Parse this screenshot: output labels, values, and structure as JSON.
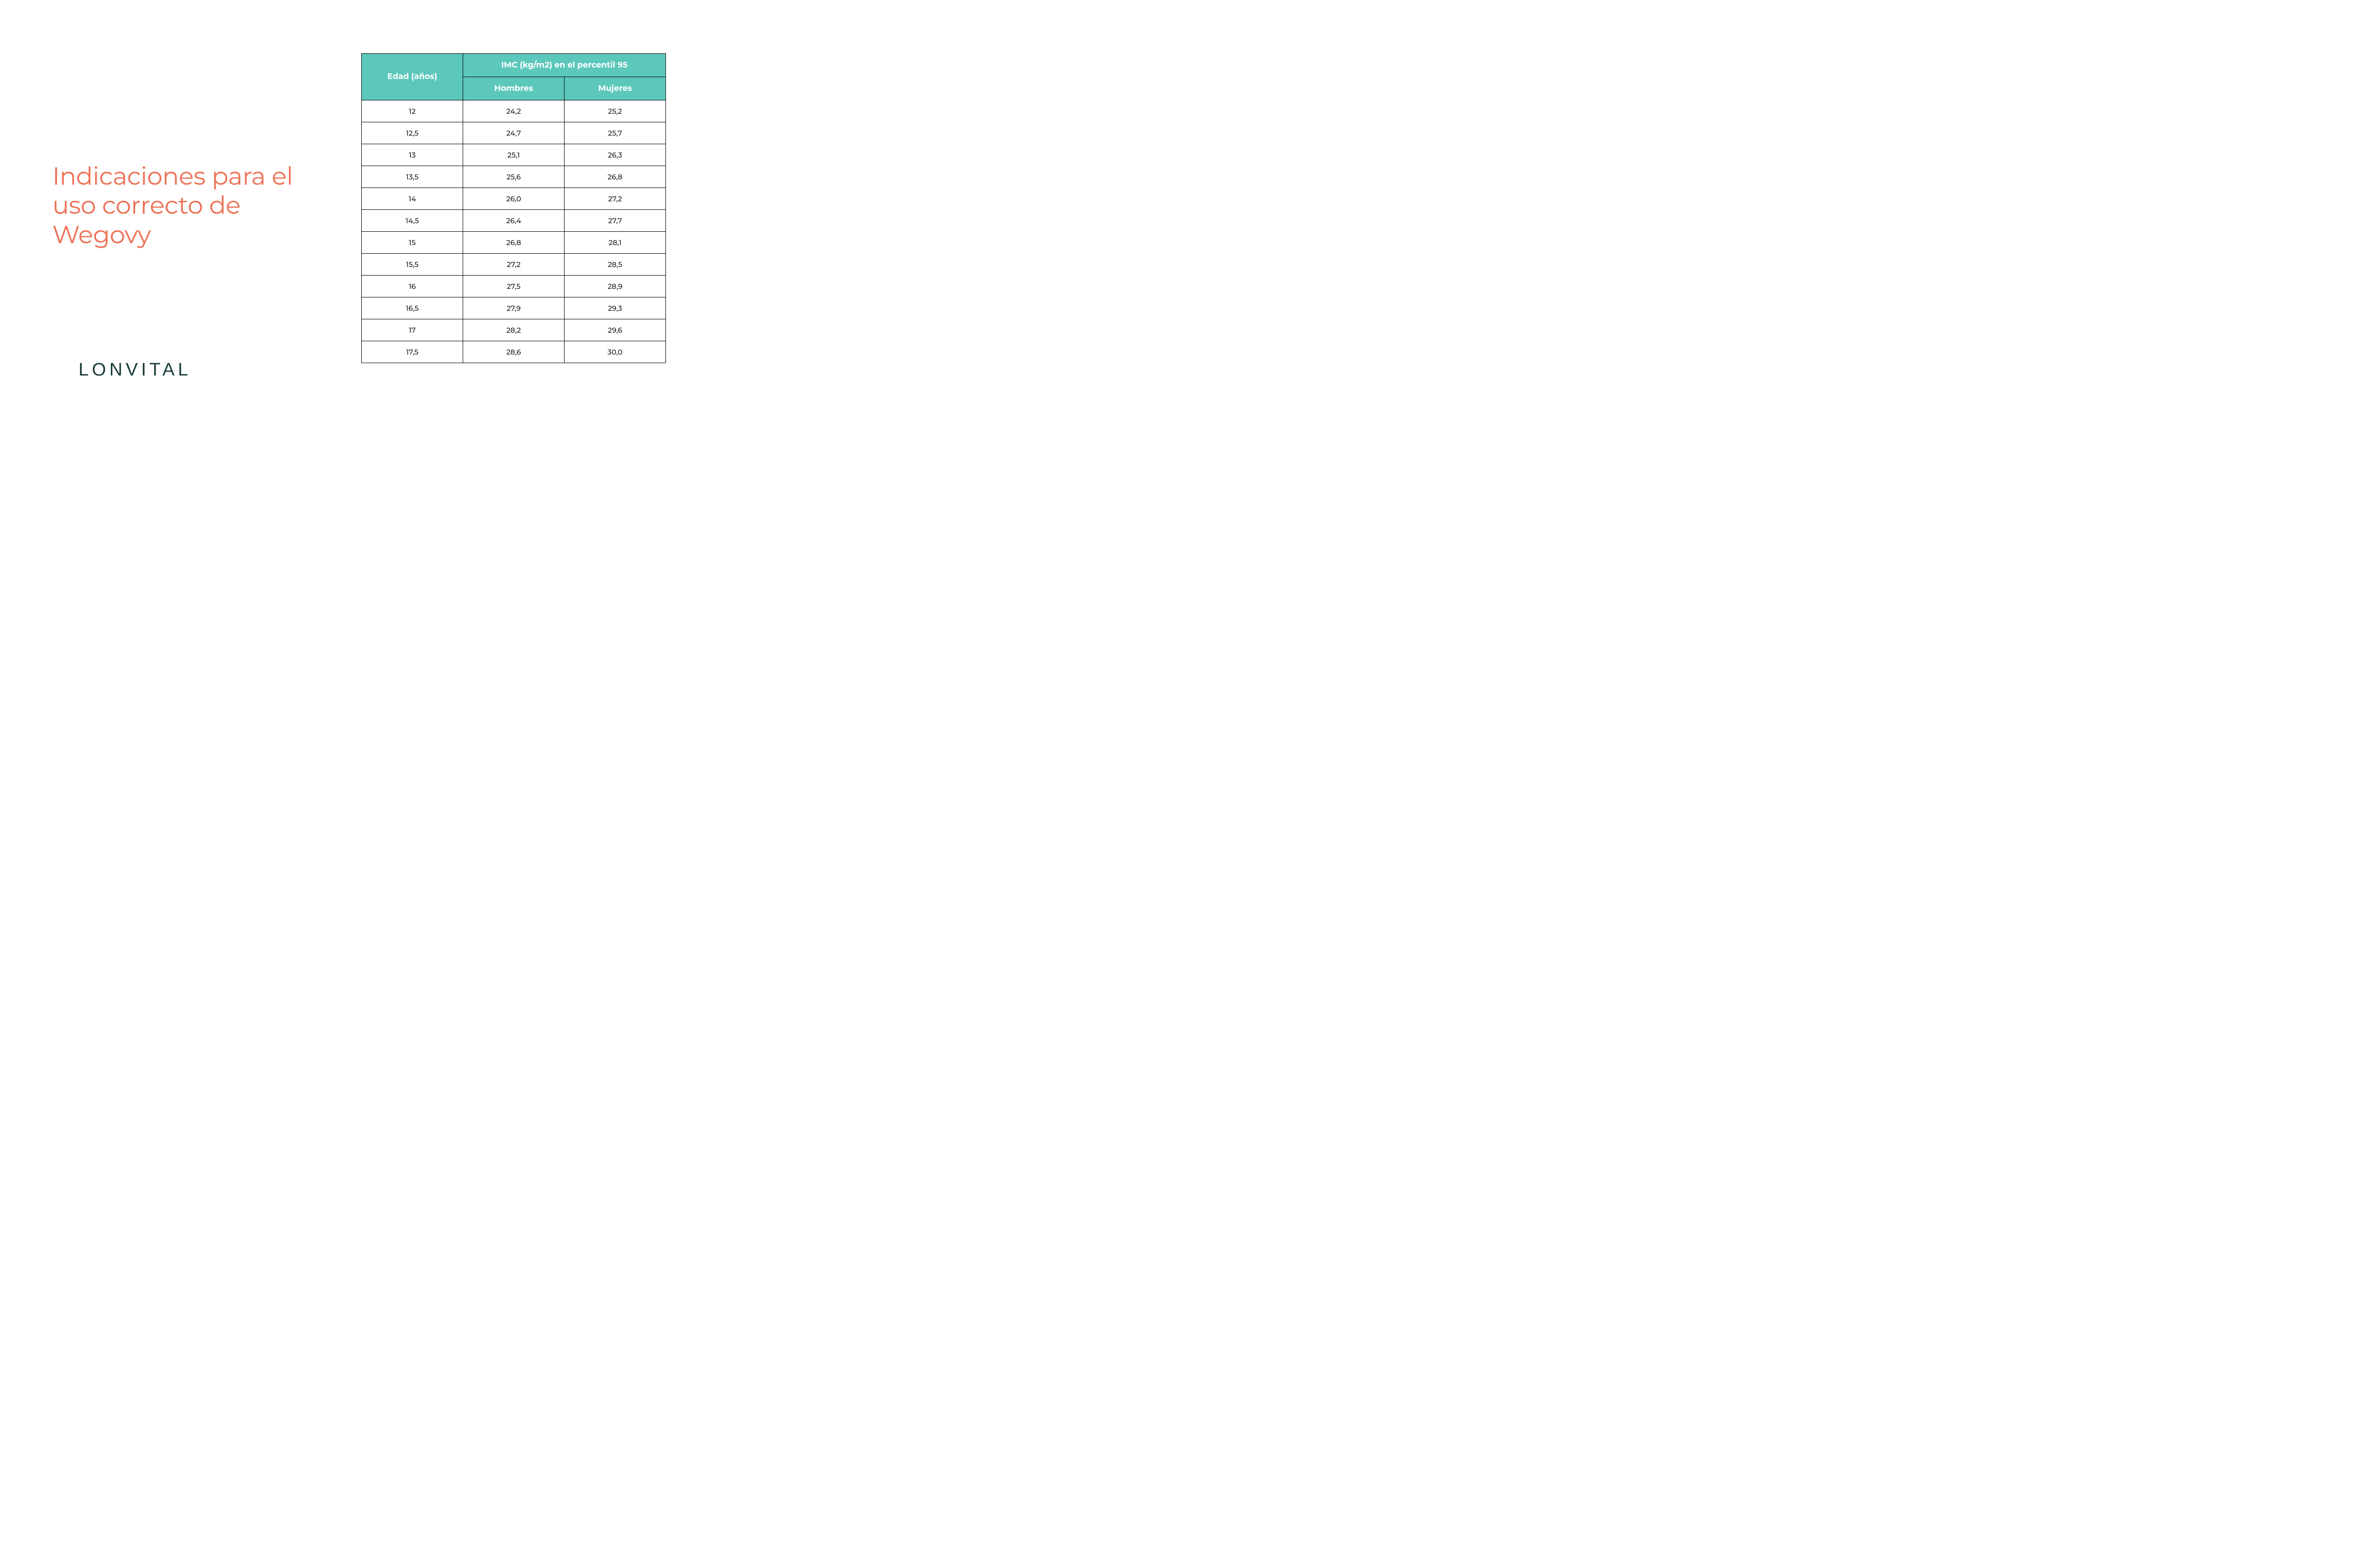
{
  "title": {
    "text": "Indicaciones para el uso correcto de Wegovy",
    "color": "#ed7256",
    "fontsize": 52
  },
  "logo": {
    "text": "LONVITAL",
    "color": "#1a3a3a",
    "fontsize": 38
  },
  "table": {
    "type": "table",
    "header_background": "#5cc7bb",
    "header_text_color": "#ffffff",
    "border_color": "#000000",
    "cell_background": "#ffffff",
    "cell_text_color": "#1a1a1a",
    "header_fontsize": 17,
    "cell_fontsize": 15,
    "headers": {
      "age": "Edad (años)",
      "imc_span": "IMC (kg/m2) en el percentil 95",
      "hombres": "Hombres",
      "mujeres": "Mujeres"
    },
    "rows": [
      {
        "age": "12",
        "hombres": "24,2",
        "mujeres": "25,2"
      },
      {
        "age": "12,5",
        "hombres": "24,7",
        "mujeres": "25,7"
      },
      {
        "age": "13",
        "hombres": "25,1",
        "mujeres": "26,3"
      },
      {
        "age": "13,5",
        "hombres": "25,6",
        "mujeres": "26,8"
      },
      {
        "age": "14",
        "hombres": "26,0",
        "mujeres": "27,2"
      },
      {
        "age": "14,5",
        "hombres": "26,4",
        "mujeres": "27,7"
      },
      {
        "age": "15",
        "hombres": "26,8",
        "mujeres": "28,1"
      },
      {
        "age": "15,5",
        "hombres": "27,2",
        "mujeres": "28,5"
      },
      {
        "age": "16",
        "hombres": "27,5",
        "mujeres": "28,9"
      },
      {
        "age": "16,5",
        "hombres": "27,9",
        "mujeres": "29,3"
      },
      {
        "age": "17",
        "hombres": "28,2",
        "mujeres": "29,6"
      },
      {
        "age": "17,5",
        "hombres": "28,6",
        "mujeres": "30,0"
      }
    ]
  }
}
